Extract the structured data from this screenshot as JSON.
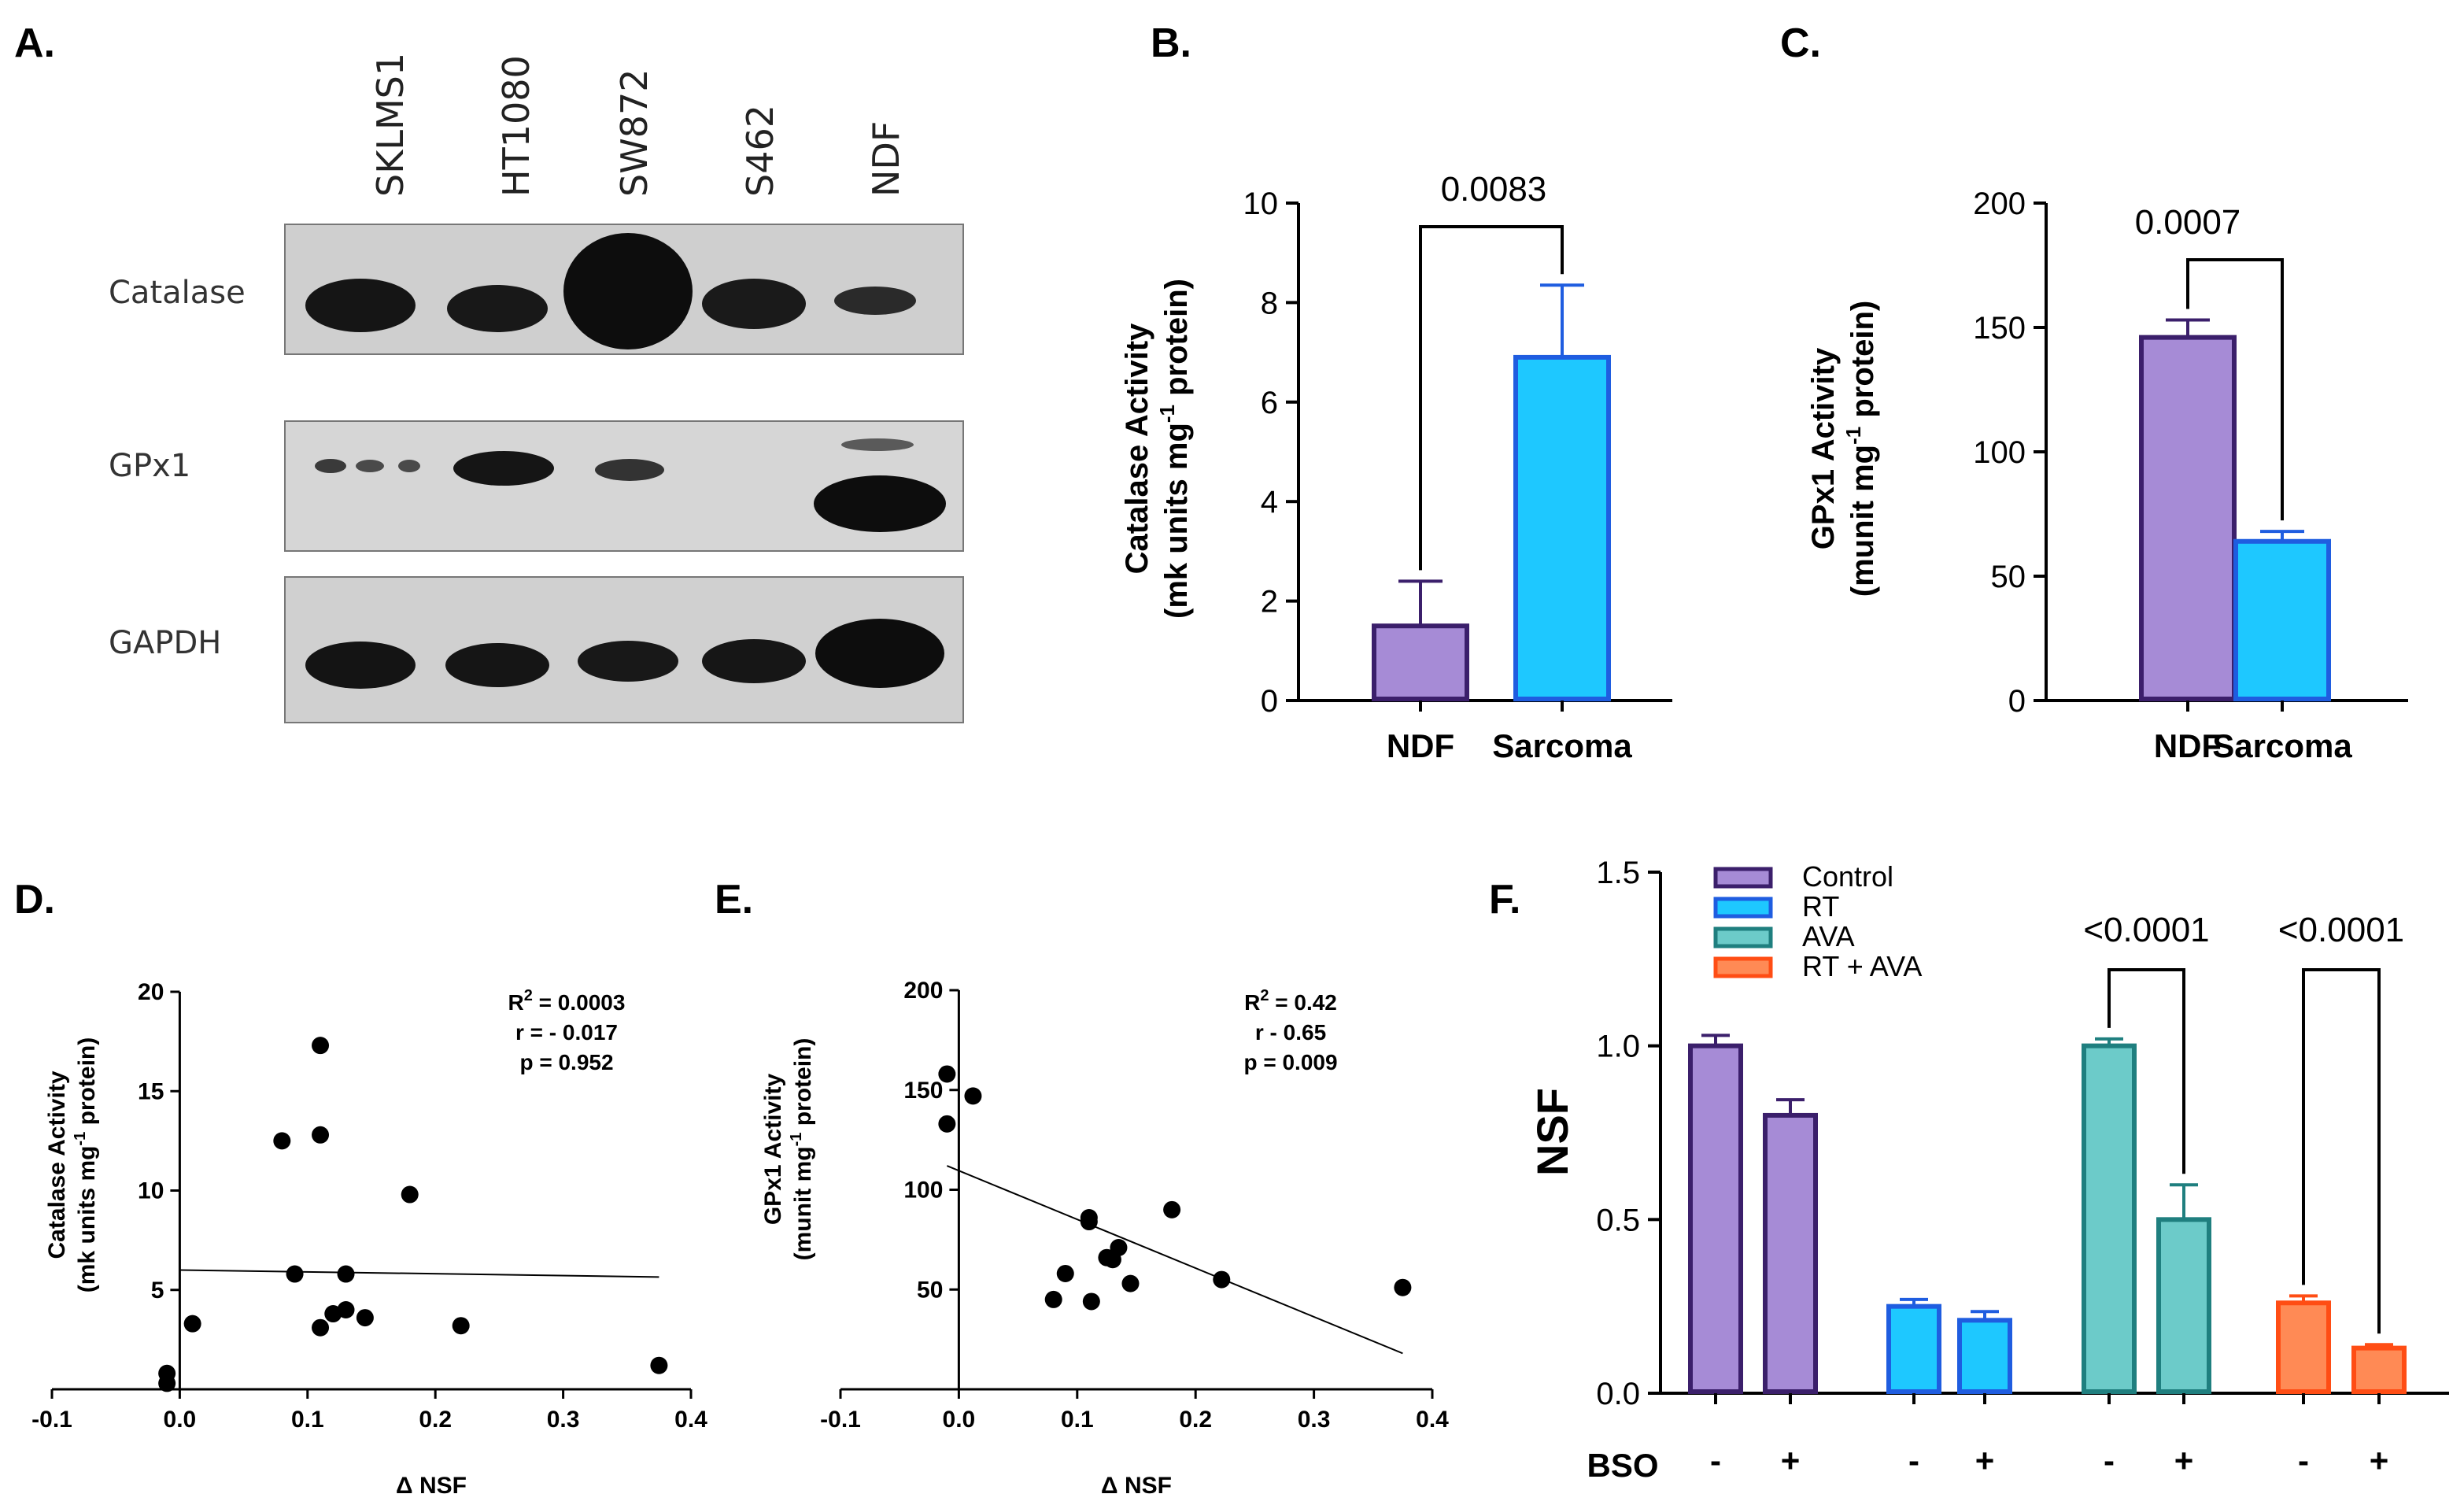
{
  "panel_labels": {
    "a": "A.",
    "b": "B.",
    "c": "C.",
    "d": "D.",
    "e": "E.",
    "f": "F."
  },
  "blot": {
    "lanes": [
      "SKLMS1",
      "HT1080",
      "SW872",
      "S462",
      "NDF"
    ],
    "rows": [
      "Catalase",
      "GPx1",
      "GAPDH"
    ]
  },
  "colors": {
    "purple": "#a68bd6",
    "purple_edge": "#3b1f6b",
    "blue": "#1ec8ff",
    "blue_edge": "#1f5de0",
    "teal": "#6ccbc9",
    "teal_edge": "#1f7f7f",
    "orange": "#ff8a55",
    "orange_edge": "#ff4d14"
  },
  "chart_data": [
    {
      "id": "B",
      "type": "bar",
      "categories": [
        "NDF",
        "Sarcoma"
      ],
      "values": [
        1.5,
        6.9
      ],
      "errors": [
        0.9,
        1.45
      ],
      "ylabel_line1": "Catalase Activity",
      "ylabel_line2": "(mk units mg",
      "ylabel_sup": "-1",
      "ylabel_tail": " protein)",
      "ylim": [
        0,
        10
      ],
      "yticks": [
        "0",
        "2",
        "4",
        "6",
        "8",
        "10"
      ],
      "comparison": "0.0083"
    },
    {
      "id": "C",
      "type": "bar",
      "categories": [
        "NDF",
        "Sarcoma"
      ],
      "values": [
        146,
        64
      ],
      "errors": [
        7,
        4
      ],
      "ylabel_line1": "GPx1 Activity",
      "ylabel_line2": "(munit mg",
      "ylabel_sup": "-1",
      "ylabel_tail": " protein)",
      "ylim": [
        0,
        200
      ],
      "yticks": [
        "0",
        "50",
        "100",
        "150",
        "200"
      ],
      "comparison": "0.0007"
    },
    {
      "id": "D",
      "type": "scatter",
      "x": [
        -0.01,
        -0.01,
        0.01,
        0.08,
        0.09,
        0.11,
        0.11,
        0.11,
        0.12,
        0.13,
        0.13,
        0.145,
        0.18,
        0.22,
        0.375
      ],
      "y": [
        0.8,
        0.3,
        3.3,
        12.5,
        5.8,
        17.3,
        12.8,
        3.1,
        3.8,
        5.8,
        4.0,
        3.6,
        9.8,
        3.2,
        1.2
      ],
      "fit": {
        "x": [
          0.0,
          0.375
        ],
        "y": [
          6.0,
          5.65
        ]
      },
      "xlabel": "Δ NSF",
      "ylabel_line1": "Catalase Activity",
      "ylabel_line2": "(mk units mg",
      "ylabel_sup": "-1",
      "ylabel_tail": " protein)",
      "xlim": [
        -0.1,
        0.4
      ],
      "ylim": [
        0,
        20
      ],
      "xticks": [
        "-0.1",
        "0.0",
        "0.1",
        "0.2",
        "0.3",
        "0.4"
      ],
      "yticks": [
        "5",
        "10",
        "15",
        "20"
      ],
      "stats": {
        "r2_label": "R",
        "r2_value": " = 0.0003",
        "r": "r = - 0.017",
        "p": "p = 0.952"
      }
    },
    {
      "id": "E",
      "type": "scatter",
      "x": [
        -0.01,
        -0.01,
        0.012,
        0.08,
        0.09,
        0.11,
        0.11,
        0.112,
        0.125,
        0.13,
        0.135,
        0.145,
        0.18,
        0.222,
        0.375
      ],
      "y": [
        158,
        133,
        147,
        45,
        58,
        86,
        84,
        44,
        66,
        65,
        71,
        53,
        90,
        55,
        51
      ],
      "fit": {
        "x": [
          -0.01,
          0.375
        ],
        "y": [
          112,
          18
        ]
      },
      "xlabel": "Δ NSF",
      "ylabel_line1": "GPx1 Activity",
      "ylabel_line2": "(munit mg",
      "ylabel_sup": "-1",
      "ylabel_tail": " protein)",
      "xlim": [
        -0.1,
        0.4
      ],
      "ylim": [
        0,
        200
      ],
      "xticks": [
        "-0.1",
        "0.0",
        "0.1",
        "0.2",
        "0.3",
        "0.4"
      ],
      "yticks": [
        "50",
        "100",
        "150",
        "200"
      ],
      "stats": {
        "r2_label": "R",
        "r2_value": " = 0.42",
        "r": "r - 0.65",
        "p": "p = 0.009"
      }
    },
    {
      "id": "F",
      "type": "bar",
      "ylabel": "NSF",
      "ylim": [
        0,
        1.5
      ],
      "yticks": [
        "0.0",
        "0.5",
        "1.0",
        "1.5"
      ],
      "row_label": "BSO",
      "bso": [
        "-",
        "+",
        "-",
        "+",
        "-",
        "+",
        "-",
        "+"
      ],
      "legend": [
        "Control",
        "RT",
        "AVA",
        "RT + AVA"
      ],
      "series": [
        {
          "name": "Control",
          "values": [
            1.0,
            0.8
          ],
          "errors": [
            0.03,
            0.045
          ]
        },
        {
          "name": "RT",
          "values": [
            0.25,
            0.21
          ],
          "errors": [
            0.02,
            0.025
          ]
        },
        {
          "name": "AVA",
          "values": [
            1.0,
            0.5
          ],
          "errors": [
            0.02,
            0.1
          ]
        },
        {
          "name": "RT + AVA",
          "values": [
            0.26,
            0.13
          ],
          "errors": [
            0.02,
            0.01
          ]
        }
      ],
      "comparisons": [
        "<0.0001",
        "<0.0001"
      ]
    }
  ]
}
